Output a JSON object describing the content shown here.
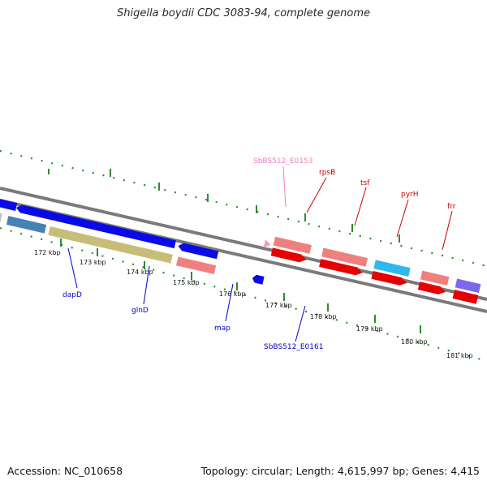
{
  "title": "Shigella boydii CDC 3083-94, complete genome",
  "footer": {
    "accession": "Accession: NC_010658",
    "summary": "Topology: circular; Length: 4,615,997 bp; Genes: 4,415"
  },
  "colors": {
    "backbone": "#7a7a7a",
    "ticks": "#2e8b2e",
    "blue_gene": "#0a0ae6",
    "red_gene": "#e60000",
    "pink_gene": "#f08080",
    "gray_gene": "#c0c0c0",
    "steelblue_gene": "#4682b4",
    "olive_gene": "#c8bd78",
    "cyan_gene": "#2fb8ee",
    "lightpink_gene": "#f79ac6",
    "slateblue_gene": "#7b68ee",
    "label_blue": "#0000cc",
    "label_red": "#cc0000",
    "label_pink": "#ee82c0"
  },
  "kbp_labels": [
    "172 kbp",
    "173 kbp",
    "174 kbp",
    "175 kbp",
    "176 kbp",
    "177 kbp",
    "178 kbp",
    "179 kbp",
    "180 kbp",
    "181 kbp"
  ],
  "gene_labels": [
    {
      "key": "dapD",
      "text": "dapD",
      "color": "blue"
    },
    {
      "key": "glnD",
      "text": "glnD",
      "color": "blue"
    },
    {
      "key": "map",
      "text": "map",
      "color": "blue"
    },
    {
      "key": "sb0161",
      "text": "SbBS512_E0161",
      "color": "blue"
    },
    {
      "key": "sb0153",
      "text": "SbBS512_E0153",
      "color": "pink"
    },
    {
      "key": "rpsB",
      "text": "rpsB",
      "color": "red"
    },
    {
      "key": "tsf",
      "text": "tsf",
      "color": "red"
    },
    {
      "key": "pyrH",
      "text": "pyrH",
      "color": "red"
    },
    {
      "key": "frr",
      "text": "frr",
      "color": "red"
    }
  ]
}
